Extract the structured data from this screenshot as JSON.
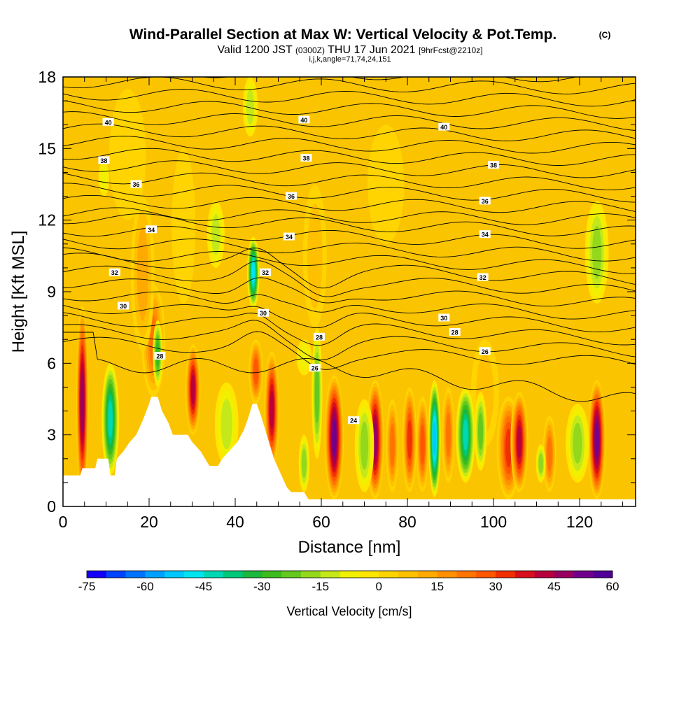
{
  "chart_data": {
    "type": "heatmap",
    "title": "Wind-Parallel Section at Max W: Vertical Velocity & Pot.Temp.",
    "title_mark": "(C)",
    "subtitle_parts": [
      "Valid 1200 JST",
      "(0300Z)",
      "THU 17 Jun 2021",
      "[9hrFcst@2210z]"
    ],
    "subtitle3": "i,j,k,angle=71,74,24,151",
    "xlabel": "Distance [nm]",
    "ylabel": "Height [Kft MSL]",
    "xlim": [
      0,
      133
    ],
    "ylim": [
      0,
      18
    ],
    "xticks": [
      0,
      20,
      40,
      60,
      80,
      100,
      120
    ],
    "xtick_labels": [
      "0",
      "20",
      "40",
      "60",
      "80",
      "100",
      "120"
    ],
    "yticks": [
      0,
      3,
      6,
      9,
      12,
      15,
      18
    ],
    "ytick_labels": [
      "0",
      "3",
      "6",
      "9",
      "12",
      "15",
      "18"
    ],
    "colorbar": {
      "label": "Vertical Velocity [cm/s]",
      "min": -75,
      "max": 60,
      "step": 5,
      "tick_values": [
        -75,
        -60,
        -45,
        -30,
        -15,
        0,
        15,
        30,
        45,
        60
      ],
      "tick_labels": [
        "-75",
        "-60",
        "-45",
        "-30",
        "-15",
        "0",
        "15",
        "30",
        "45",
        "60"
      ]
    },
    "terrain": [
      [
        0,
        1.3
      ],
      [
        4,
        1.3
      ],
      [
        4.5,
        1.6
      ],
      [
        7.5,
        1.6
      ],
      [
        8,
        2.0
      ],
      [
        10.5,
        2.0
      ],
      [
        11,
        1.3
      ],
      [
        12,
        1.3
      ],
      [
        12.5,
        2.0
      ],
      [
        14,
        2.3
      ],
      [
        15.5,
        2.7
      ],
      [
        17,
        3.0
      ],
      [
        18.5,
        3.6
      ],
      [
        20,
        4.3
      ],
      [
        20.5,
        4.6
      ],
      [
        22,
        4.6
      ],
      [
        23,
        4.0
      ],
      [
        24.5,
        3.5
      ],
      [
        25.5,
        3.0
      ],
      [
        29,
        3.0
      ],
      [
        30,
        2.7
      ],
      [
        32,
        2.3
      ],
      [
        34,
        1.7
      ],
      [
        36,
        1.7
      ],
      [
        37,
        2.0
      ],
      [
        39,
        2.4
      ],
      [
        40.5,
        2.7
      ],
      [
        42,
        3.2
      ],
      [
        43,
        3.7
      ],
      [
        44,
        4.3
      ],
      [
        45,
        4.3
      ],
      [
        46,
        3.8
      ],
      [
        47,
        3.2
      ],
      [
        48,
        2.6
      ],
      [
        49,
        2.0
      ],
      [
        50,
        1.6
      ],
      [
        51,
        1.2
      ],
      [
        52,
        0.8
      ],
      [
        53,
        0.6
      ],
      [
        56,
        0.6
      ],
      [
        57,
        0.3
      ],
      [
        133,
        0.3
      ]
    ],
    "updrafts": [
      {
        "x": 4.5,
        "w": 1.2,
        "y0": 0.3,
        "y1": 8.4,
        "peak": 52
      },
      {
        "x": 21,
        "w": 2.5,
        "y0": 4.6,
        "y1": 9.3,
        "peak": 28
      },
      {
        "x": 30.2,
        "w": 1.5,
        "y0": 3.0,
        "y1": 6.8,
        "peak": 45
      },
      {
        "x": 44.8,
        "w": 1.4,
        "y0": 4.3,
        "y1": 7.0,
        "peak": 30
      },
      {
        "x": 48.5,
        "w": 1.5,
        "y0": 1.6,
        "y1": 6.5,
        "peak": 45
      },
      {
        "x": 63,
        "w": 2.0,
        "y0": 0.3,
        "y1": 5.5,
        "peak": 58
      },
      {
        "x": 72.5,
        "w": 1.8,
        "y0": 0.3,
        "y1": 5.3,
        "peak": 50
      },
      {
        "x": 76.5,
        "w": 1.2,
        "y0": 0.6,
        "y1": 4.5,
        "peak": 28
      },
      {
        "x": 80.5,
        "w": 1.4,
        "y0": 0.6,
        "y1": 5.0,
        "peak": 35
      },
      {
        "x": 83.5,
        "w": 1.2,
        "y0": 0.6,
        "y1": 4.6,
        "peak": 30
      },
      {
        "x": 89.5,
        "w": 1.2,
        "y0": 1.0,
        "y1": 5.0,
        "peak": 28
      },
      {
        "x": 103.5,
        "w": 2.5,
        "y0": 0.3,
        "y1": 4.6,
        "peak": 38
      },
      {
        "x": 106,
        "w": 1.8,
        "y0": 0.6,
        "y1": 4.8,
        "peak": 45
      },
      {
        "x": 113,
        "w": 1.3,
        "y0": 0.6,
        "y1": 3.8,
        "peak": 25
      },
      {
        "x": 124,
        "w": 1.8,
        "y0": 0.3,
        "y1": 5.3,
        "peak": 55
      },
      {
        "x": 18.5,
        "w": 2.5,
        "y0": 6.5,
        "y1": 13.0,
        "peak": 16
      },
      {
        "x": 28,
        "w": 2.5,
        "y0": 8.5,
        "y1": 15.0,
        "peak": 9
      },
      {
        "x": 58.5,
        "w": 2.5,
        "y0": 7.5,
        "y1": 13.5,
        "peak": 10
      },
      {
        "x": 98,
        "w": 3,
        "y0": 2.5,
        "y1": 7.0,
        "peak": 10
      },
      {
        "x": 15,
        "w": 4,
        "y0": 12.0,
        "y1": 17.5,
        "peak": 8
      },
      {
        "x": 75,
        "w": 4,
        "y0": 11.0,
        "y1": 16.0,
        "peak": 8
      }
    ],
    "downdrafts": [
      {
        "x": 11,
        "w": 1.8,
        "y0": 1.3,
        "y1": 6.0,
        "peak": -45
      },
      {
        "x": 22,
        "w": 0.9,
        "y0": 5.0,
        "y1": 7.8,
        "peak": -30
      },
      {
        "x": 44.2,
        "w": 1.2,
        "y0": 8.3,
        "y1": 11.3,
        "peak": -50
      },
      {
        "x": 38,
        "w": 2.5,
        "y0": 1.7,
        "y1": 5.2,
        "peak": -15
      },
      {
        "x": 56,
        "w": 1.0,
        "y0": 0.6,
        "y1": 3.0,
        "peak": -22
      },
      {
        "x": 59,
        "w": 1.0,
        "y0": 2.0,
        "y1": 7.5,
        "peak": -25
      },
      {
        "x": 70,
        "w": 2.0,
        "y0": 0.6,
        "y1": 4.5,
        "peak": -22
      },
      {
        "x": 86.3,
        "w": 1.2,
        "y0": 0.4,
        "y1": 5.3,
        "peak": -58
      },
      {
        "x": 93.5,
        "w": 2.0,
        "y0": 1.0,
        "y1": 5.0,
        "peak": -48
      },
      {
        "x": 97,
        "w": 1.2,
        "y0": 1.5,
        "y1": 4.8,
        "peak": -28
      },
      {
        "x": 111,
        "w": 0.9,
        "y0": 1.0,
        "y1": 2.6,
        "peak": -22
      },
      {
        "x": 119.5,
        "w": 2.5,
        "y0": 1.0,
        "y1": 4.3,
        "peak": -22
      },
      {
        "x": 124,
        "w": 2.5,
        "y0": 8.5,
        "y1": 12.8,
        "peak": -22
      },
      {
        "x": 35.5,
        "w": 1.8,
        "y0": 10.0,
        "y1": 12.8,
        "peak": -15
      },
      {
        "x": 43.5,
        "w": 1.5,
        "y0": 15.5,
        "y1": 18,
        "peak": -15
      },
      {
        "x": 9.5,
        "w": 1.0,
        "y0": 13.0,
        "y1": 14.5,
        "peak": -10
      },
      {
        "x": 56,
        "w": 1.5,
        "y0": 5.5,
        "y1": 7.0,
        "peak": -12
      }
    ],
    "theta_labels": [
      {
        "text": "40",
        "x": 10.5,
        "y": 16.1
      },
      {
        "text": "40",
        "x": 56,
        "y": 16.2
      },
      {
        "text": "40",
        "x": 88.5,
        "y": 15.9
      },
      {
        "text": "38",
        "x": 9.5,
        "y": 14.5
      },
      {
        "text": "38",
        "x": 56.5,
        "y": 14.6
      },
      {
        "text": "38",
        "x": 100,
        "y": 14.3
      },
      {
        "text": "36",
        "x": 17,
        "y": 13.5
      },
      {
        "text": "36",
        "x": 53,
        "y": 13.0
      },
      {
        "text": "36",
        "x": 98,
        "y": 12.8
      },
      {
        "text": "34",
        "x": 20.5,
        "y": 11.6
      },
      {
        "text": "34",
        "x": 52.5,
        "y": 11.3
      },
      {
        "text": "34",
        "x": 98,
        "y": 11.4
      },
      {
        "text": "32",
        "x": 12,
        "y": 9.8
      },
      {
        "text": "32",
        "x": 47,
        "y": 9.8
      },
      {
        "text": "32",
        "x": 97.5,
        "y": 9.6
      },
      {
        "text": "30",
        "x": 14,
        "y": 8.4
      },
      {
        "text": "30",
        "x": 46.5,
        "y": 8.1
      },
      {
        "text": "30",
        "x": 88.5,
        "y": 7.9
      },
      {
        "text": "28",
        "x": 22.5,
        "y": 6.3
      },
      {
        "text": "28",
        "x": 59.5,
        "y": 7.1
      },
      {
        "text": "28",
        "x": 91,
        "y": 7.3
      },
      {
        "text": "26",
        "x": 58.5,
        "y": 5.8
      },
      {
        "text": "26",
        "x": 98,
        "y": 6.5
      },
      {
        "text": "24",
        "x": 67.5,
        "y": 3.6
      }
    ]
  }
}
